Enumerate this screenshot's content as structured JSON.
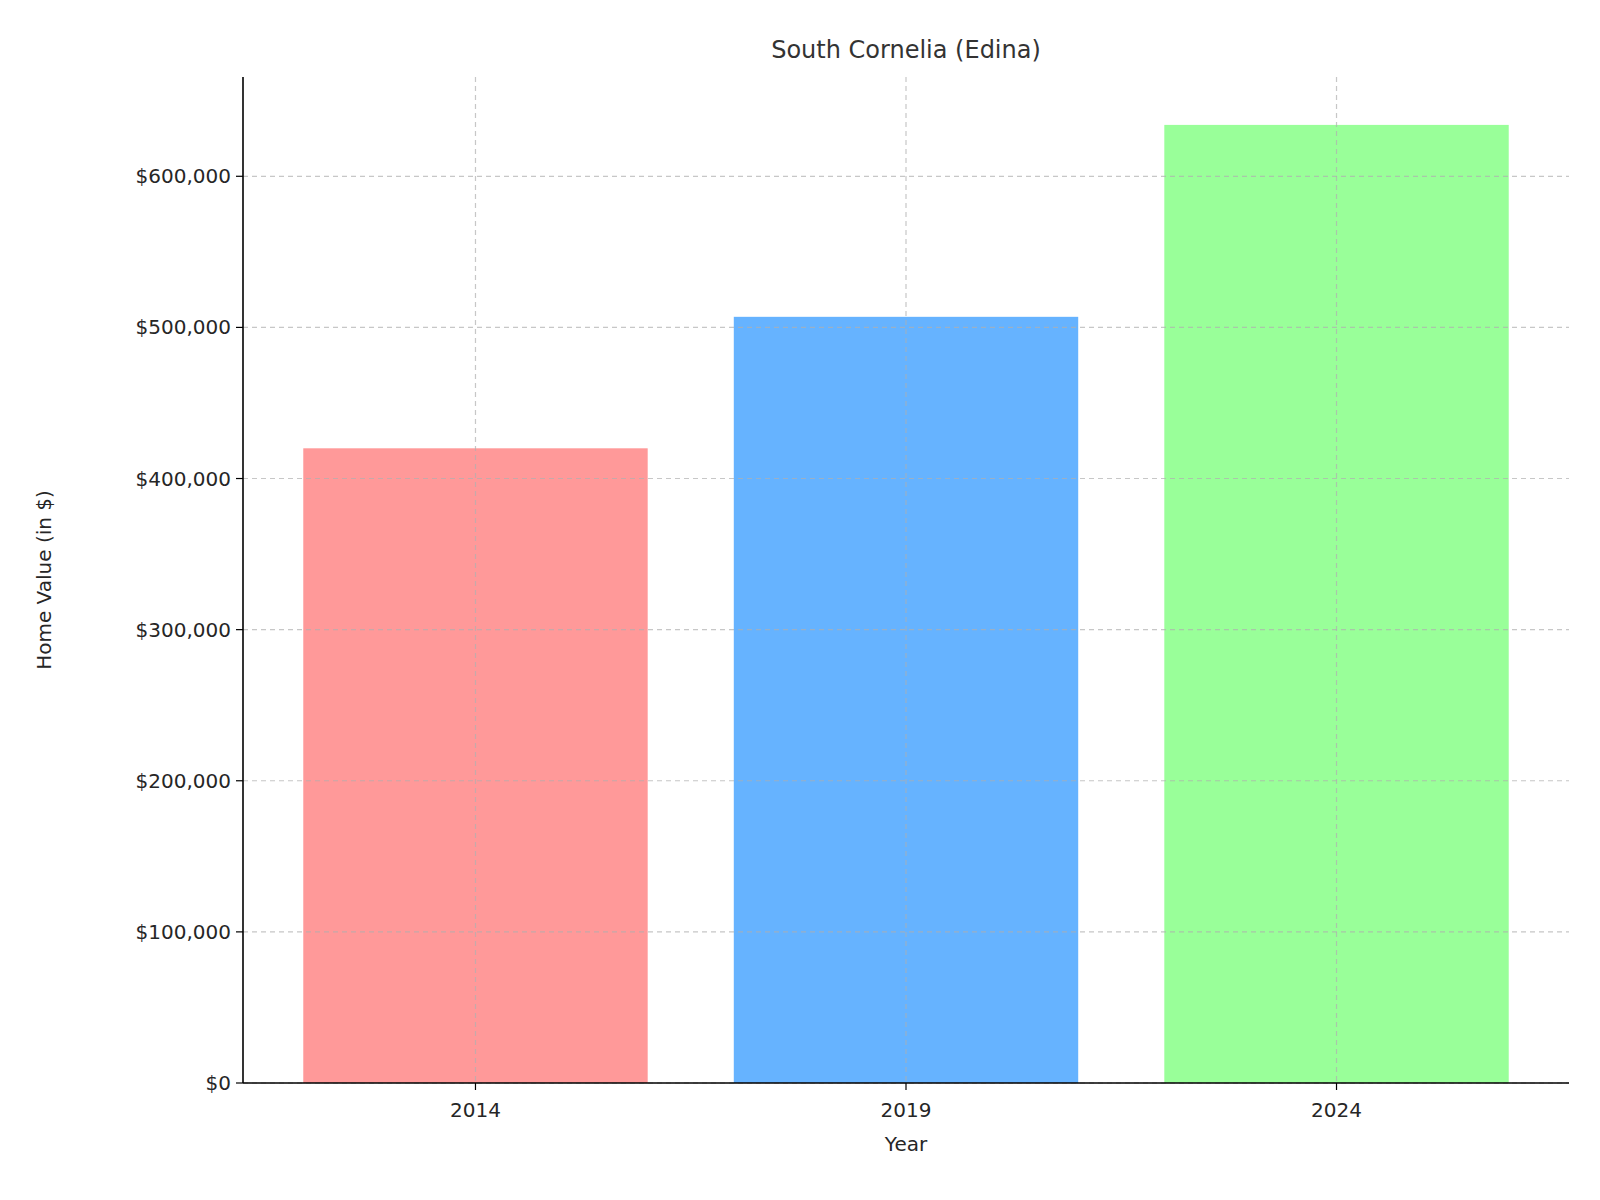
{
  "chart_data": {
    "type": "bar",
    "title": "South Cornelia (Edina)",
    "x_label": "Year",
    "y_label": "Home Value (in $)",
    "categories": [
      "2014",
      "2019",
      "2024"
    ],
    "values": [
      420000,
      507000,
      634000
    ],
    "colors": [
      "#ff9999",
      "#66b3ff",
      "#99ff99"
    ],
    "ylim": [
      0,
      665700
    ],
    "yticks": [
      {
        "value": 0,
        "label": "$0"
      },
      {
        "value": 100000,
        "label": "$100,000"
      },
      {
        "value": 200000,
        "label": "$200,000"
      },
      {
        "value": 300000,
        "label": "$300,000"
      },
      {
        "value": 400000,
        "label": "$400,000"
      },
      {
        "value": 500000,
        "label": "$500,000"
      },
      {
        "value": 600000,
        "label": "$600,000"
      }
    ],
    "grid": true
  }
}
